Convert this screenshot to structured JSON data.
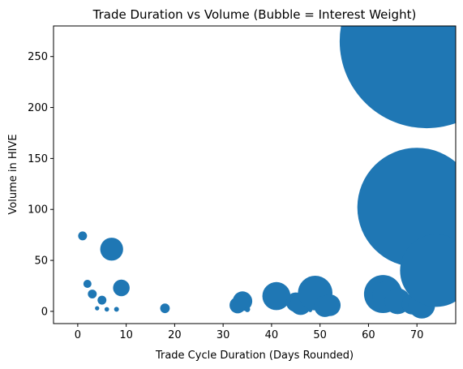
{
  "chart_data": {
    "type": "scatter",
    "title": "Trade Duration vs Volume (Bubble = Interest Weight)",
    "xlabel": "Trade Cycle Duration (Days Rounded)",
    "ylabel": "Volume in HIVE",
    "xlim": [
      -5,
      78
    ],
    "ylim": [
      -12,
      280
    ],
    "xticks": [
      0,
      10,
      20,
      30,
      40,
      50,
      60,
      70
    ],
    "yticks": [
      0,
      50,
      100,
      150,
      200,
      250
    ],
    "grid": false,
    "legend": "none",
    "bubble_color": "#1f77b4",
    "points": [
      {
        "x": 1,
        "y": 74,
        "size": 0.3
      },
      {
        "x": 2,
        "y": 27,
        "size": 0.25
      },
      {
        "x": 3,
        "y": 17,
        "size": 0.3
      },
      {
        "x": 4,
        "y": 3,
        "size": 0.07
      },
      {
        "x": 5,
        "y": 11,
        "size": 0.3
      },
      {
        "x": 6,
        "y": 2,
        "size": 0.08
      },
      {
        "x": 7,
        "y": 61,
        "size": 2.0
      },
      {
        "x": 8,
        "y": 2,
        "size": 0.09
      },
      {
        "x": 9,
        "y": 23,
        "size": 1.05
      },
      {
        "x": 18,
        "y": 3,
        "size": 0.35
      },
      {
        "x": 33,
        "y": 6,
        "size": 1.0
      },
      {
        "x": 34,
        "y": 10,
        "size": 1.45
      },
      {
        "x": 35,
        "y": 2,
        "size": 0.12
      },
      {
        "x": 41,
        "y": 15,
        "size": 3.0
      },
      {
        "x": 45,
        "y": 9,
        "size": 1.45
      },
      {
        "x": 46,
        "y": 7,
        "size": 1.75
      },
      {
        "x": 48,
        "y": 1,
        "size": 0.05
      },
      {
        "x": 49,
        "y": 18,
        "size": 4.55
      },
      {
        "x": 51,
        "y": 5,
        "size": 1.75
      },
      {
        "x": 52,
        "y": 6,
        "size": 1.8
      },
      {
        "x": 63,
        "y": 17,
        "size": 5.5
      },
      {
        "x": 64,
        "y": 15,
        "size": 3.7
      },
      {
        "x": 66,
        "y": 10,
        "size": 2.55
      },
      {
        "x": 69,
        "y": 7,
        "size": 1.6
      },
      {
        "x": 70,
        "y": 102,
        "size": 54.0
      },
      {
        "x": 71,
        "y": 6,
        "size": 2.7
      },
      {
        "x": 72,
        "y": 265,
        "size": 115.0
      },
      {
        "x": 74,
        "y": 40,
        "size": 20.0
      }
    ]
  }
}
